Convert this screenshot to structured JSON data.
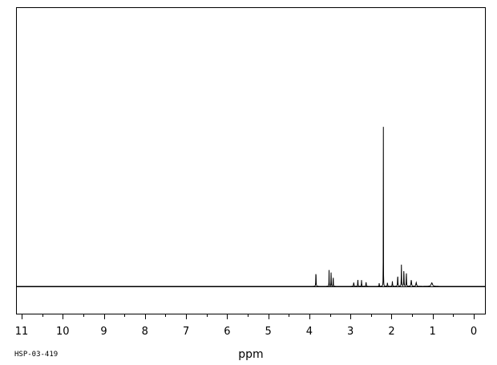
{
  "footer": {
    "spectrum_code": "HSP-03-419"
  },
  "chart_data": {
    "type": "line",
    "title": "",
    "xlabel": "ppm",
    "ylabel": "",
    "xlim": [
      11,
      0
    ],
    "x_reversed": true,
    "grid": false,
    "legend": "none",
    "x_ticks": [
      11,
      10,
      9,
      8,
      7,
      6,
      5,
      4,
      3,
      2,
      1,
      0
    ],
    "x_tick_labels": [
      "11",
      "10",
      "9",
      "8",
      "7",
      "6",
      "5",
      "4",
      "3",
      "2",
      "1",
      "0"
    ],
    "series": [
      {
        "line_color": "#000000",
        "baseline": 0,
        "peaks": [
          {
            "ppm": 3.84,
            "height": 0.063,
            "width": 0.025
          },
          {
            "ppm": 3.52,
            "height": 0.065,
            "width": 0.018
          },
          {
            "ppm": 3.47,
            "height": 0.072,
            "width": 0.018
          },
          {
            "ppm": 3.42,
            "height": 0.05,
            "width": 0.018
          },
          {
            "ppm": 2.92,
            "height": 0.015,
            "width": 0.04
          },
          {
            "ppm": 2.82,
            "height": 0.03,
            "width": 0.025
          },
          {
            "ppm": 2.73,
            "height": 0.025,
            "width": 0.025
          },
          {
            "ppm": 2.62,
            "height": 0.018,
            "width": 0.03
          },
          {
            "ppm": 2.3,
            "height": 0.015,
            "width": 0.02
          },
          {
            "ppm": 2.2,
            "height": 1.0,
            "width": 0.008
          },
          {
            "ppm": 2.1,
            "height": 0.015,
            "width": 0.03
          },
          {
            "ppm": 1.98,
            "height": 0.02,
            "width": 0.03
          },
          {
            "ppm": 1.85,
            "height": 0.045,
            "width": 0.03
          },
          {
            "ppm": 1.76,
            "height": 0.085,
            "width": 0.025
          },
          {
            "ppm": 1.7,
            "height": 0.07,
            "width": 0.025
          },
          {
            "ppm": 1.64,
            "height": 0.06,
            "width": 0.025
          },
          {
            "ppm": 1.52,
            "height": 0.025,
            "width": 0.05
          },
          {
            "ppm": 1.4,
            "height": 0.015,
            "width": 0.06
          },
          {
            "ppm": 1.02,
            "height": 0.014,
            "width": 0.12
          }
        ]
      }
    ]
  }
}
